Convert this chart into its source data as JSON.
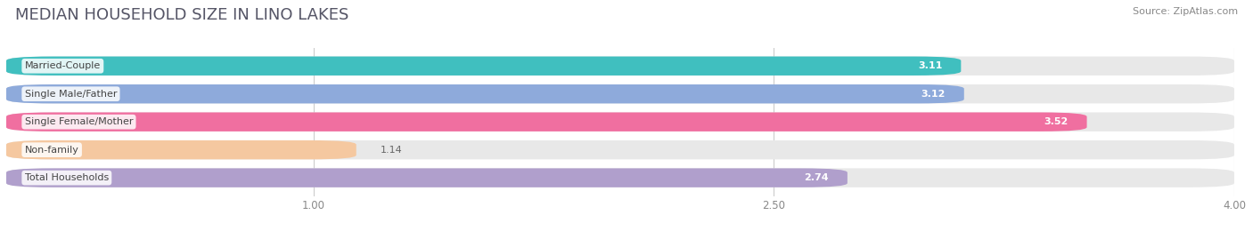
{
  "title": "MEDIAN HOUSEHOLD SIZE IN LINO LAKES",
  "source": "Source: ZipAtlas.com",
  "categories": [
    "Married-Couple",
    "Single Male/Father",
    "Single Female/Mother",
    "Non-family",
    "Total Households"
  ],
  "values": [
    3.11,
    3.12,
    3.52,
    1.14,
    2.74
  ],
  "colors": [
    "#40bfbf",
    "#8eaadb",
    "#f06fa0",
    "#f5c8a0",
    "#b09fcc"
  ],
  "xmin": 0.0,
  "xmax": 4.0,
  "xticks": [
    1.0,
    2.5,
    4.0
  ],
  "bar_height": 0.68,
  "background_color": "#ffffff",
  "bar_bg_color": "#e8e8e8",
  "title_fontsize": 13,
  "label_fontsize": 8,
  "value_fontsize": 8,
  "source_fontsize": 8,
  "title_color": "#555566",
  "source_color": "#888888",
  "label_color": "#444444",
  "value_color_inside": "#ffffff",
  "value_color_outside": "#666666",
  "grid_color": "#cccccc",
  "tick_color": "#888888"
}
